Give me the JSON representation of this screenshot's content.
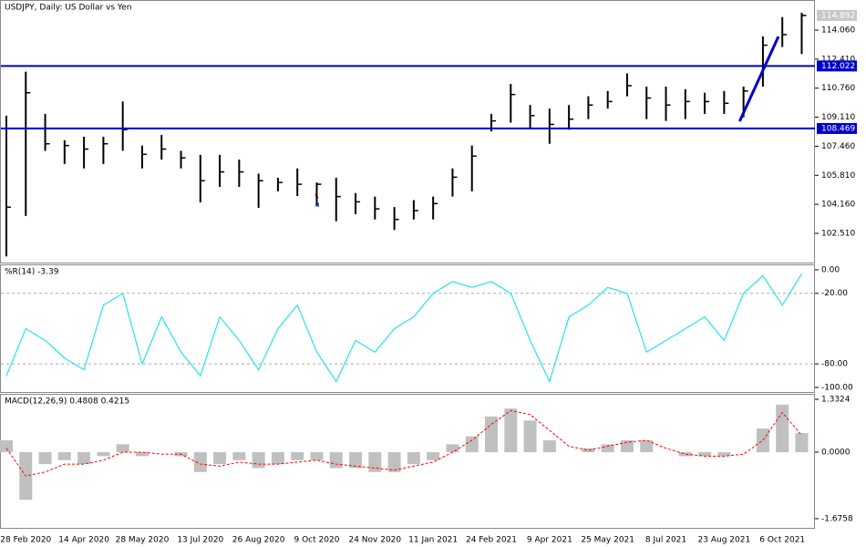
{
  "chart_data": [
    {
      "type": "ohlc",
      "title": "USDJPY, Daily:  US Dollar vs Yen",
      "color": "#000000",
      "high": [
        109.2,
        111.7,
        109.3,
        107.8,
        108.0,
        108.0,
        110.0,
        107.5,
        108.1,
        107.2,
        106.97,
        106.97,
        106.7,
        105.9,
        105.67,
        106.2,
        105.4,
        105.67,
        104.8,
        104.6,
        104.0,
        104.4,
        104.6,
        106.2,
        107.5,
        109.3,
        111.0,
        109.8,
        109.6,
        109.8,
        110.3,
        110.6,
        111.6,
        110.85,
        110.85,
        110.7,
        110.5,
        110.6,
        110.85,
        113.7,
        114.8,
        115.04
      ],
      "low": [
        101.2,
        103.5,
        107.2,
        106.45,
        106.2,
        106.45,
        107.2,
        106.2,
        106.7,
        106.2,
        104.27,
        105.15,
        105.15,
        103.96,
        104.9,
        104.63,
        104.1,
        103.2,
        103.6,
        103.3,
        102.7,
        103.3,
        103.3,
        104.6,
        104.9,
        108.3,
        108.8,
        108.5,
        107.6,
        108.4,
        109.0,
        109.6,
        110.3,
        109.0,
        108.9,
        109.0,
        109.3,
        109.3,
        109.1,
        110.85,
        113.1,
        112.7
      ],
      "close": [
        104.0,
        110.5,
        107.6,
        107.5,
        107.3,
        107.6,
        108.4,
        107.0,
        107.3,
        106.8,
        105.5,
        106.0,
        106.0,
        105.5,
        105.4,
        105.3,
        105.3,
        104.6,
        104.3,
        103.9,
        103.3,
        103.8,
        104.2,
        105.7,
        106.9,
        108.9,
        110.4,
        109.2,
        108.7,
        109.0,
        109.8,
        110.0,
        110.9,
        110.2,
        109.8,
        110.0,
        110.0,
        109.9,
        110.6,
        113.2,
        113.8,
        114.892
      ],
      "ylim": [
        100.85,
        115.77
      ],
      "yticks": [
        {
          "value": 114.06,
          "label": "114.060"
        },
        {
          "value": 112.41,
          "label": "112.410"
        },
        {
          "value": 110.76,
          "label": "110.760"
        },
        {
          "value": 109.11,
          "label": "109.110"
        },
        {
          "value": 107.46,
          "label": "107.460"
        },
        {
          "value": 105.81,
          "label": "105.810"
        },
        {
          "value": 104.16,
          "label": "104.160"
        },
        {
          "value": 102.51,
          "label": "102.510"
        }
      ],
      "hlines": [
        {
          "value": 112.022,
          "color": "#0000cc"
        },
        {
          "value": 108.469,
          "color": "#0000cc"
        }
      ],
      "last_price": 114.892,
      "trendline": {
        "values": [
          108.88,
          113.7
        ],
        "color": "#0000cc"
      }
    },
    {
      "type": "line",
      "title": "%R(14) -3.39",
      "color": "#27e1f0",
      "values": [
        -90,
        -50,
        -60,
        -75,
        -85,
        -30,
        -20,
        -80,
        -40,
        -70,
        -90,
        -40,
        -60,
        -85,
        -50,
        -30,
        -70,
        -95,
        -60,
        -70,
        -50,
        -40,
        -20,
        -10,
        -15,
        -10,
        -20,
        -60,
        -95,
        -40,
        -30,
        -15,
        -20,
        -70,
        -60,
        -50,
        -40,
        -60,
        -20,
        -5,
        -30,
        -3.39
      ],
      "ylim": [
        -103.9,
        4.6
      ],
      "yticks": [
        {
          "value": 0,
          "label": "0.00"
        },
        {
          "value": -20,
          "label": "-20.00"
        },
        {
          "value": -80,
          "label": "-80.00"
        },
        {
          "value": -100,
          "label": "-100.00"
        }
      ],
      "levels": [
        -20,
        -80
      ]
    },
    {
      "type": "macd",
      "title": "MACD(12,26,9) 0.4808 0.4215",
      "categories": [
        null,
        "28 Feb 2020",
        null,
        null,
        "14 Apr 2020",
        null,
        null,
        "28 May 2020",
        null,
        null,
        "13 Jul 2020",
        null,
        null,
        "26 Aug 2020",
        null,
        null,
        "9 Oct 2020",
        null,
        null,
        "24 Nov 2020",
        null,
        null,
        "11 Jan 2021",
        null,
        null,
        "24 Feb 2021",
        null,
        null,
        "9 Apr 2021",
        null,
        null,
        "25 May 2021",
        null,
        null,
        "8 Jul 2021",
        null,
        null,
        "23 Aug 2021",
        null,
        null,
        "6 Oct 2021",
        null
      ],
      "series": [
        {
          "color": "#c0c0c0",
          "values": [
            0.3,
            -1.2,
            -0.3,
            -0.2,
            -0.3,
            -0.1,
            0.2,
            -0.1,
            0.0,
            -0.1,
            -0.5,
            -0.3,
            -0.2,
            -0.4,
            -0.3,
            -0.2,
            -0.2,
            -0.4,
            -0.4,
            -0.5,
            -0.5,
            -0.3,
            -0.2,
            0.2,
            0.4,
            0.9,
            1.1,
            0.8,
            0.3,
            0.0,
            0.1,
            0.2,
            0.3,
            0.3,
            0.0,
            -0.1,
            -0.1,
            -0.1,
            0.0,
            0.6,
            1.2,
            0.4808
          ]
        },
        {
          "color": "#ff0000",
          "values": [
            0.1,
            -0.6,
            -0.5,
            -0.3,
            -0.3,
            -0.2,
            0.0,
            0.0,
            -0.05,
            -0.05,
            -0.3,
            -0.35,
            -0.25,
            -0.3,
            -0.3,
            -0.25,
            -0.2,
            -0.3,
            -0.35,
            -0.4,
            -0.45,
            -0.35,
            -0.25,
            0.0,
            0.3,
            0.7,
            1.05,
            0.95,
            0.55,
            0.15,
            0.05,
            0.15,
            0.25,
            0.3,
            0.1,
            -0.05,
            -0.1,
            -0.1,
            -0.05,
            0.3,
            1.0,
            0.4215
          ]
        }
      ],
      "ylim": [
        -2.16,
        1.471
      ],
      "yticks": [
        1.3324,
        {
          "value": 0,
          "label": "0.0000"
        },
        -1.6758
      ]
    }
  ]
}
